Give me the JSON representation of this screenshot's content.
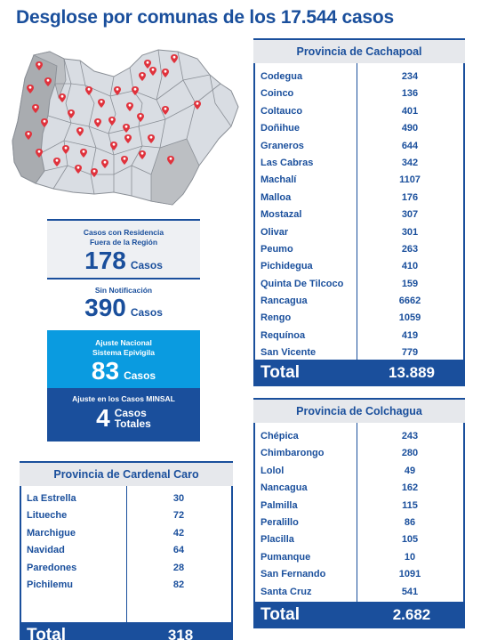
{
  "title": "Desglose por comunas de los 17.544 casos",
  "map": {
    "label_icon": "map-pin-icon",
    "region_fill": "#d9dde3",
    "province_fill": "#a9acb0",
    "pin_color": "#e0323c"
  },
  "fuera_region": {
    "label_line1": "Casos con Residencia",
    "label_line2": "Fuera de la Región",
    "value": "178",
    "unit": "Casos"
  },
  "sin_notificacion": {
    "label": "Sin Notificación",
    "value": "390",
    "unit": "Casos"
  },
  "ajuste_nacional": {
    "label_line1": "Ajuste Nacional",
    "label_line2": "Sistema Epivigila",
    "value": "83",
    "unit": "Casos"
  },
  "ajuste_minsal": {
    "label": "Ajuste en los Casos MINSAL",
    "value": "4",
    "unit_line1": "Casos",
    "unit_line2": "Totales"
  },
  "cachapoal": {
    "title": "Provincia de Cachapoal",
    "rows": [
      {
        "name": "Codegua",
        "value": "234"
      },
      {
        "name": "Coinco",
        "value": "136"
      },
      {
        "name": "Coltauco",
        "value": "401"
      },
      {
        "name": "Doñihue",
        "value": "490"
      },
      {
        "name": "Graneros",
        "value": "644"
      },
      {
        "name": "Las Cabras",
        "value": "342"
      },
      {
        "name": "Machalí",
        "value": "1107"
      },
      {
        "name": "Malloa",
        "value": "176"
      },
      {
        "name": "Mostazal",
        "value": "307"
      },
      {
        "name": "Olivar",
        "value": "301"
      },
      {
        "name": "Peumo",
        "value": "263"
      },
      {
        "name": "Pichidegua",
        "value": "410"
      },
      {
        "name": "Quinta De Tilcoco",
        "value": "159"
      },
      {
        "name": "Rancagua",
        "value": "6662"
      },
      {
        "name": "Rengo",
        "value": "1059"
      },
      {
        "name": "Requínoa",
        "value": "419"
      },
      {
        "name": "San Vicente",
        "value": "779"
      }
    ],
    "total_label": "Total",
    "total_value": "13.889"
  },
  "colchagua": {
    "title": "Provincia de Colchagua",
    "rows": [
      {
        "name": "Chépica",
        "value": "243"
      },
      {
        "name": "Chimbarongo",
        "value": "280"
      },
      {
        "name": "Lolol",
        "value": "49"
      },
      {
        "name": "Nancagua",
        "value": "162"
      },
      {
        "name": "Palmilla",
        "value": "115"
      },
      {
        "name": "Peralillo",
        "value": "86"
      },
      {
        "name": "Placilla",
        "value": "105"
      },
      {
        "name": "Pumanque",
        "value": "10"
      },
      {
        "name": "San Fernando",
        "value": "1091"
      },
      {
        "name": "Santa Cruz",
        "value": "541"
      }
    ],
    "total_label": "Total",
    "total_value": "2.682"
  },
  "cardenal_caro": {
    "title": "Provincia de Cardenal Caro",
    "rows": [
      {
        "name": "La Estrella",
        "value": "30"
      },
      {
        "name": "Litueche",
        "value": "72"
      },
      {
        "name": "Marchigue",
        "value": "42"
      },
      {
        "name": "Navidad",
        "value": "64"
      },
      {
        "name": "Paredones",
        "value": "28"
      },
      {
        "name": "Pichilemu",
        "value": "82"
      }
    ],
    "total_label": "Total",
    "total_value": "318"
  }
}
